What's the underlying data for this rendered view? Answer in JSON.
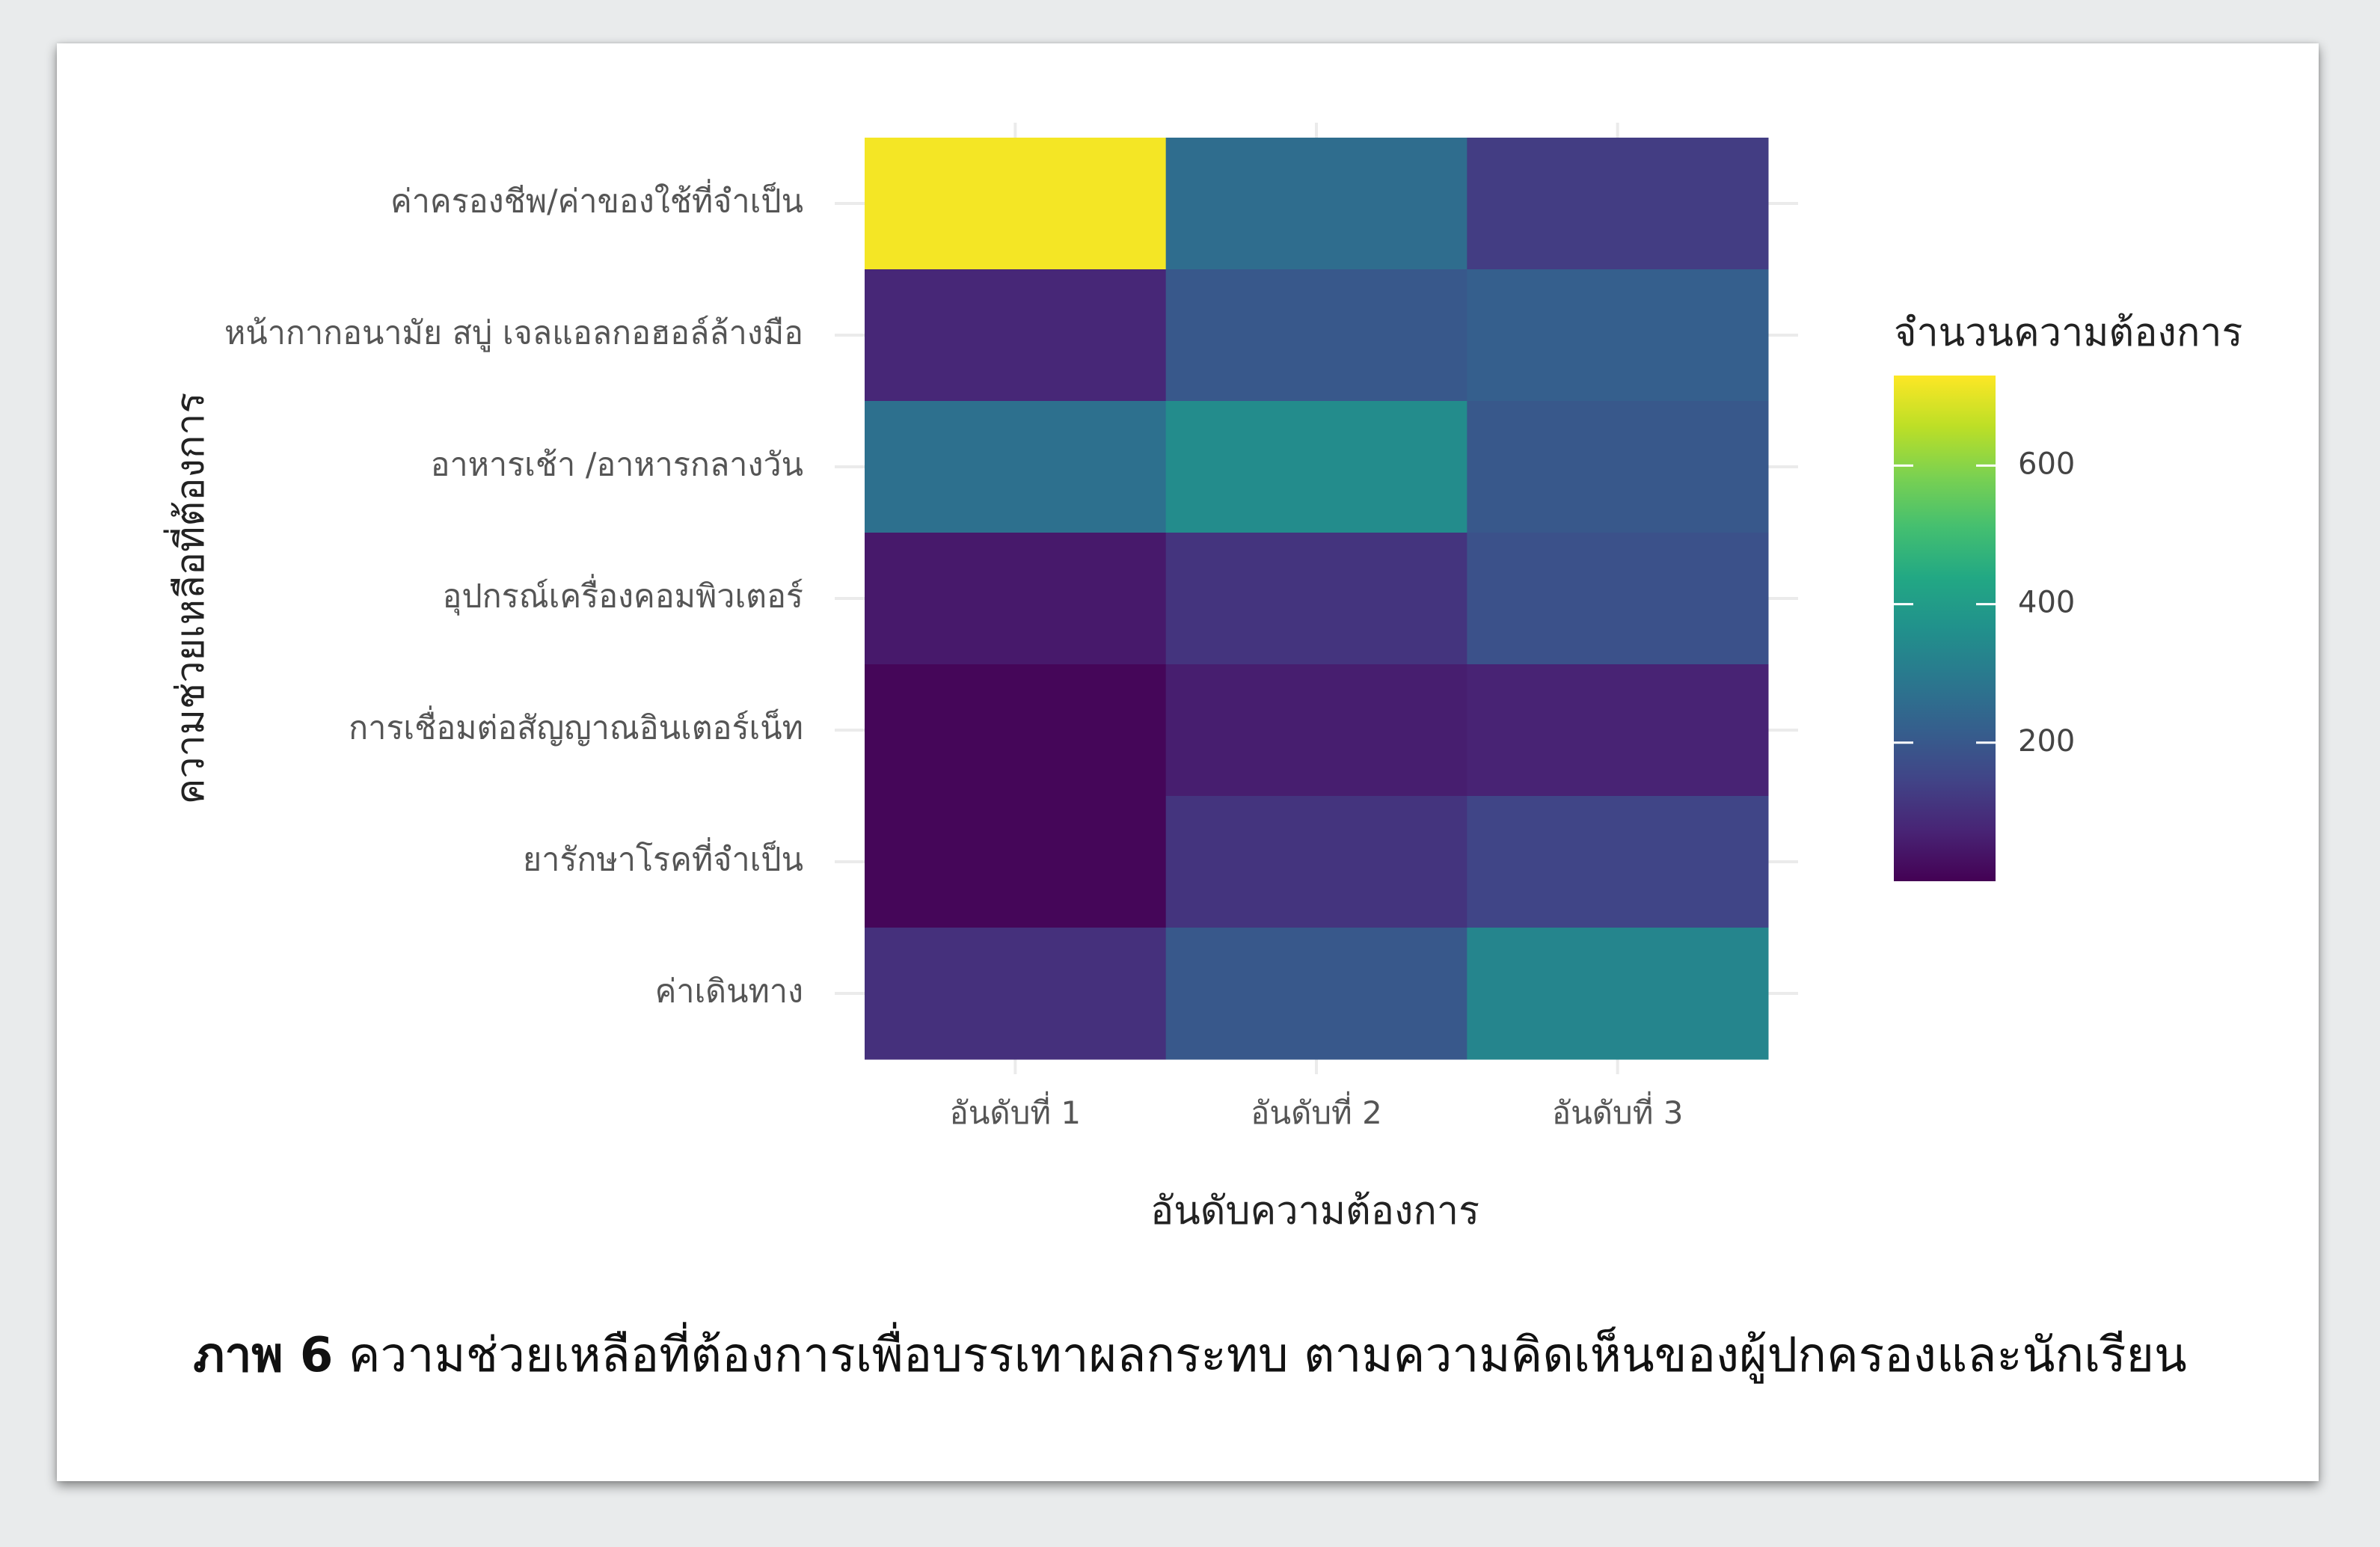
{
  "caption": {
    "label": "ภาพ 6",
    "text": " ความช่วยเหลือที่ต้องการเพื่อบรรเทาผลกระทบ ตามความคิดเห็นของผู้ปกครองและนักเรียน"
  },
  "chart_data": {
    "type": "heatmap",
    "xlabel": "อันดับความต้องการ",
    "ylabel": "ความช่วยเหลือที่ต้องการ",
    "x_categories": [
      "อันดับที่ 1",
      "อันดับที่ 2",
      "อันดับที่ 3"
    ],
    "y_categories": [
      "ค่าครองชีพ/ค่าของใช้ที่จำเป็น",
      "หน้ากากอนามัย สบู่ เจลแอลกอฮอล์ล้างมือ",
      "อาหารเช้า /อาหารกลางวัน",
      "อุปกรณ์เครื่องคอมพิวเตอร์",
      "การเชื่อมต่อสัญญาณอินเตอร์เน็ท",
      "ยารักษาโรคที่จำเป็น",
      "ค่าเดินทาง"
    ],
    "values": [
      [
        720,
        260,
        130
      ],
      [
        80,
        200,
        220
      ],
      [
        270,
        350,
        200
      ],
      [
        50,
        110,
        180
      ],
      [
        10,
        60,
        70
      ],
      [
        10,
        110,
        150
      ],
      [
        100,
        200,
        330
      ]
    ],
    "legend": {
      "title": "จำนวนความต้องการ",
      "range": [
        0,
        730
      ],
      "ticks": [
        200,
        400,
        600
      ],
      "colormap": "viridis",
      "placement": "right"
    }
  }
}
